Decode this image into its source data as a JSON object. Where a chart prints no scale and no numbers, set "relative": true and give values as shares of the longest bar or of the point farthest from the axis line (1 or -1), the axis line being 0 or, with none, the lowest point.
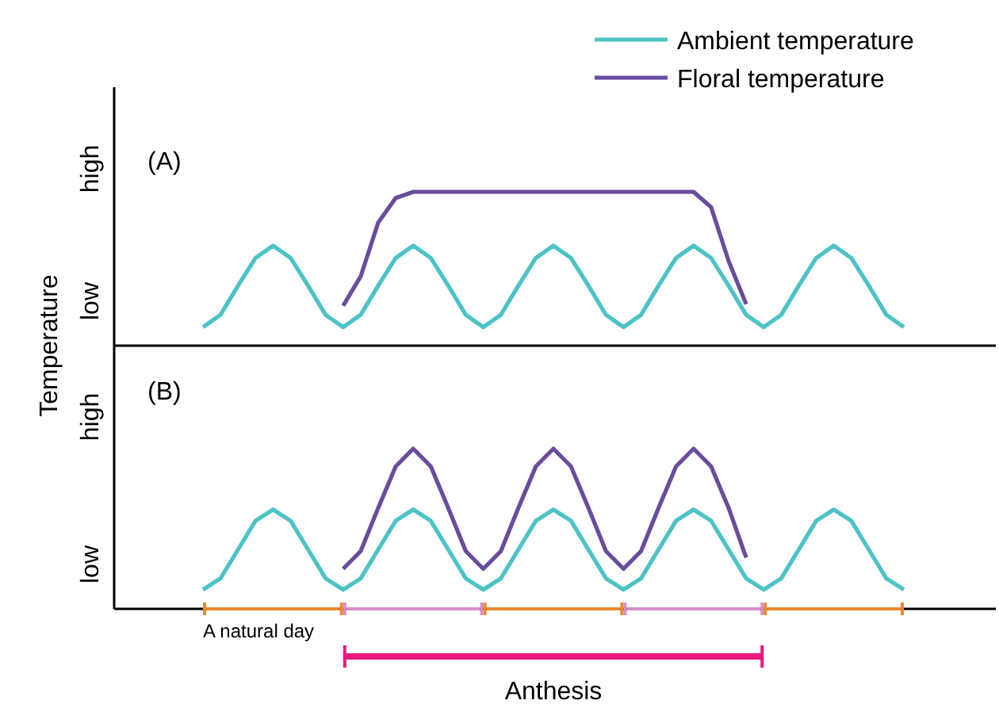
{
  "chart_data": [
    {
      "type": "line",
      "relative": true,
      "ylabel": "Temperature",
      "legend": "top right",
      "annotations": [
        "(A)",
        "high",
        "low"
      ],
      "categories": [
        null,
        null,
        null,
        null,
        null,
        null,
        null,
        null,
        null,
        null,
        null,
        null,
        null,
        null,
        null,
        null,
        null,
        null,
        null,
        null,
        null,
        null,
        null,
        null,
        null,
        null,
        null,
        null,
        null,
        null,
        null,
        null,
        null,
        null,
        null,
        null,
        null,
        null,
        null,
        null,
        null
      ],
      "series": [
        {
          "name": "Ambient temperature",
          "color": "#4cc3c6",
          "values": [
            0.12,
            0.2,
            0.39,
            0.57,
            0.65,
            0.57,
            0.39,
            0.2,
            0.12,
            0.2,
            0.39,
            0.57,
            0.65,
            0.57,
            0.39,
            0.2,
            0.12,
            0.2,
            0.39,
            0.57,
            0.65,
            0.57,
            0.39,
            0.2,
            0.12,
            0.2,
            0.39,
            0.57,
            0.65,
            0.57,
            0.39,
            0.2,
            0.12,
            0.2,
            0.39,
            0.57,
            0.65,
            0.57,
            0.39,
            0.2,
            0.12
          ]
        },
        {
          "name": "Floral temperature",
          "color": "#6a4c9c",
          "values": [
            null,
            null,
            null,
            null,
            null,
            null,
            null,
            null,
            0.26,
            0.45,
            0.8,
            0.96,
            1,
            1,
            1,
            1,
            1,
            1,
            1,
            1,
            1,
            1,
            1,
            1,
            1,
            1,
            1,
            1,
            1,
            0.9,
            0.55,
            0.27,
            null,
            null,
            null,
            null,
            null,
            null,
            null,
            null,
            null
          ]
        }
      ]
    },
    {
      "type": "line",
      "relative": true,
      "annotations": [
        "(B)",
        "high",
        "low",
        "A natural day",
        "Anthesis"
      ],
      "categories": [
        null,
        null,
        null,
        null,
        null,
        null,
        null,
        null,
        null,
        null,
        null,
        null,
        null,
        null,
        null,
        null,
        null,
        null,
        null,
        null,
        null,
        null,
        null,
        null,
        null,
        null,
        null,
        null,
        null,
        null,
        null,
        null,
        null,
        null,
        null,
        null,
        null,
        null,
        null,
        null,
        null
      ],
      "series": [
        {
          "color": "#4cc3c6",
          "values": [
            0.12,
            0.19,
            0.37,
            0.55,
            0.62,
            0.55,
            0.37,
            0.19,
            0.12,
            0.19,
            0.37,
            0.55,
            0.62,
            0.55,
            0.37,
            0.19,
            0.12,
            0.19,
            0.37,
            0.55,
            0.62,
            0.55,
            0.37,
            0.19,
            0.12,
            0.19,
            0.37,
            0.55,
            0.62,
            0.55,
            0.37,
            0.19,
            0.12,
            0.19,
            0.37,
            0.55,
            0.62,
            0.55,
            0.37,
            0.19,
            0.12
          ]
        },
        {
          "color": "#6a4c9c",
          "values": [
            null,
            null,
            null,
            null,
            null,
            null,
            null,
            null,
            0.25,
            0.36,
            0.63,
            0.89,
            1,
            0.89,
            0.63,
            0.36,
            0.25,
            0.36,
            0.63,
            0.89,
            1,
            0.89,
            0.63,
            0.36,
            0.25,
            0.36,
            0.63,
            0.89,
            1,
            0.89,
            0.63,
            0.32,
            null,
            null,
            null,
            null,
            null,
            null,
            null,
            null,
            null
          ]
        }
      ]
    }
  ]
}
